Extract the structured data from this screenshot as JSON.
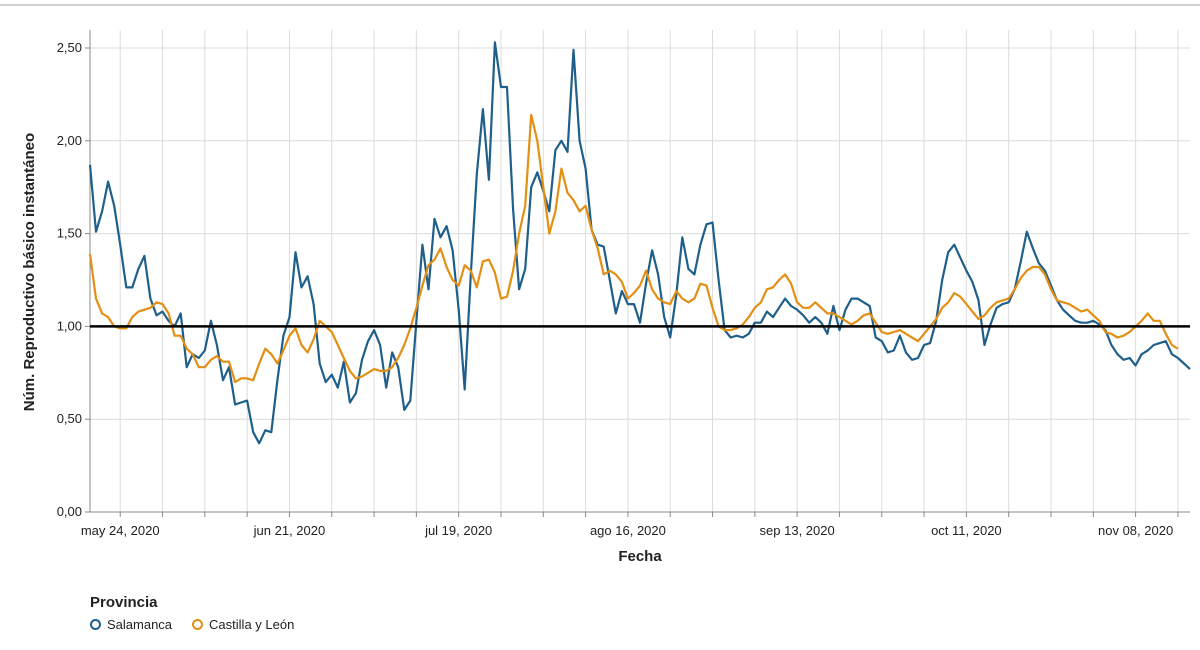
{
  "chart_data": {
    "type": "line",
    "xlabel": "Fecha",
    "ylabel": "Núm. Reproductivo básico instantáneo",
    "ylim": [
      0,
      2.5
    ],
    "y_ticks": [
      "0,00",
      "0,50",
      "1,00",
      "1,50",
      "2,00",
      "2,50"
    ],
    "y_tick_values": [
      0,
      0.5,
      1,
      1.5,
      2,
      2.5
    ],
    "x_start": "2020-05-19",
    "x_end": "2020-11-15",
    "x_tick_labels": [
      "may 24, 2020",
      "jun 21, 2020",
      "jul 19, 2020",
      "ago 16, 2020",
      "sep 13, 2020",
      "oct 11, 2020",
      "nov 08, 2020"
    ],
    "x_tick_days": [
      5,
      33,
      61,
      89,
      117,
      145,
      173
    ],
    "grid": "weekly vertical, horizontal at y ticks",
    "reference_line": 1.0,
    "legend": {
      "title": "Provincia",
      "placement": "bottom-left"
    },
    "series": [
      {
        "name": "Salamanca",
        "color": "#1f5f8b",
        "values": [
          1.87,
          1.51,
          1.62,
          1.78,
          1.65,
          1.44,
          1.21,
          1.21,
          1.31,
          1.38,
          1.15,
          1.06,
          1.08,
          1.03,
          1.0,
          1.07,
          0.78,
          0.85,
          0.83,
          0.87,
          1.03,
          0.9,
          0.71,
          0.78,
          0.58,
          0.59,
          0.6,
          0.43,
          0.37,
          0.44,
          0.43,
          0.71,
          0.95,
          1.05,
          1.4,
          1.21,
          1.27,
          1.12,
          0.8,
          0.7,
          0.74,
          0.67,
          0.81,
          0.59,
          0.64,
          0.82,
          0.92,
          0.98,
          0.9,
          0.67,
          0.86,
          0.78,
          0.55,
          0.6,
          1.03,
          1.44,
          1.2,
          1.58,
          1.48,
          1.54,
          1.41,
          1.09,
          0.66,
          1.28,
          1.82,
          2.17,
          1.79,
          2.53,
          2.29,
          2.29,
          1.63,
          1.2,
          1.31,
          1.75,
          1.83,
          1.73,
          1.62,
          1.95,
          2.0,
          1.94,
          2.49,
          2.0,
          1.85,
          1.52,
          1.44,
          1.43,
          1.25,
          1.07,
          1.19,
          1.12,
          1.12,
          1.02,
          1.23,
          1.41,
          1.28,
          1.05,
          0.94,
          1.17,
          1.48,
          1.31,
          1.28,
          1.44,
          1.55,
          1.56,
          1.25,
          0.98,
          0.94,
          0.95,
          0.94,
          0.96,
          1.02,
          1.02,
          1.08,
          1.05,
          1.1,
          1.15,
          1.11,
          1.09,
          1.06,
          1.02,
          1.05,
          1.02,
          0.96,
          1.11,
          0.98,
          1.09,
          1.15,
          1.15,
          1.13,
          1.11,
          0.94,
          0.92,
          0.86,
          0.87,
          0.95,
          0.86,
          0.82,
          0.83,
          0.9,
          0.91,
          1.03,
          1.25,
          1.4,
          1.44,
          1.37,
          1.3,
          1.24,
          1.14,
          0.9,
          1.01,
          1.1,
          1.12,
          1.13,
          1.2,
          1.35,
          1.51,
          1.42,
          1.34,
          1.3,
          1.22,
          1.14,
          1.09,
          1.06,
          1.03,
          1.02,
          1.02,
          1.03,
          1.01,
          0.98,
          0.9,
          0.85,
          0.82,
          0.83,
          0.79,
          0.85,
          0.87,
          0.9,
          0.91,
          0.92,
          0.85,
          0.83,
          0.8,
          0.77
        ]
      },
      {
        "name": "Castilla y León",
        "color": "#e38f14",
        "values": [
          1.39,
          1.15,
          1.07,
          1.05,
          1.0,
          0.99,
          0.99,
          1.05,
          1.08,
          1.09,
          1.1,
          1.13,
          1.12,
          1.07,
          0.95,
          0.95,
          0.88,
          0.85,
          0.78,
          0.78,
          0.82,
          0.84,
          0.81,
          0.81,
          0.7,
          0.72,
          0.72,
          0.71,
          0.8,
          0.88,
          0.85,
          0.8,
          0.87,
          0.95,
          0.99,
          0.9,
          0.86,
          0.93,
          1.03,
          1.0,
          0.97,
          0.9,
          0.83,
          0.76,
          0.72,
          0.73,
          0.75,
          0.77,
          0.76,
          0.76,
          0.78,
          0.83,
          0.9,
          0.99,
          1.1,
          1.22,
          1.33,
          1.36,
          1.42,
          1.32,
          1.25,
          1.22,
          1.33,
          1.3,
          1.21,
          1.35,
          1.36,
          1.29,
          1.15,
          1.16,
          1.3,
          1.5,
          1.65,
          2.14,
          2.0,
          1.75,
          1.5,
          1.62,
          1.85,
          1.72,
          1.68,
          1.62,
          1.65,
          1.52,
          1.42,
          1.28,
          1.3,
          1.28,
          1.24,
          1.15,
          1.18,
          1.22,
          1.3,
          1.2,
          1.15,
          1.13,
          1.12,
          1.19,
          1.15,
          1.13,
          1.15,
          1.23,
          1.22,
          1.1,
          1.0,
          0.98,
          0.98,
          0.99,
          1.01,
          1.05,
          1.1,
          1.13,
          1.2,
          1.21,
          1.25,
          1.28,
          1.23,
          1.13,
          1.1,
          1.1,
          1.13,
          1.1,
          1.07,
          1.07,
          1.05,
          1.03,
          1.01,
          1.03,
          1.06,
          1.07,
          1.02,
          0.97,
          0.96,
          0.97,
          0.98,
          0.96,
          0.94,
          0.92,
          0.96,
          1.0,
          1.04,
          1.1,
          1.13,
          1.18,
          1.16,
          1.12,
          1.08,
          1.04,
          1.06,
          1.1,
          1.13,
          1.14,
          1.15,
          1.2,
          1.26,
          1.3,
          1.32,
          1.32,
          1.28,
          1.2,
          1.14,
          1.13,
          1.12,
          1.1,
          1.08,
          1.09,
          1.06,
          1.03,
          0.97,
          0.96,
          0.94,
          0.95,
          0.97,
          1.0,
          1.03,
          1.07,
          1.03,
          1.03,
          0.96,
          0.9,
          0.88
        ]
      }
    ]
  }
}
